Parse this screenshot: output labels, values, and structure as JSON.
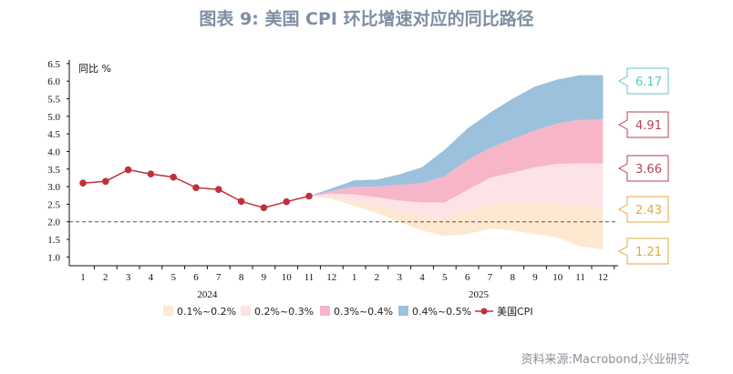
{
  "header": {
    "title": "图表 9:  美国 CPI 环比增速对应的同比路径"
  },
  "footer": {
    "source": "资料来源:Macrobond,兴业研究"
  },
  "chart_data": {
    "type": "area",
    "title": "图表 9:  美国 CPI 环比增速对应的同比路径",
    "ylabel": "同比 %",
    "xlabel": "",
    "ylim": [
      0.75,
      6.6
    ],
    "yticks": [
      "1.0",
      "1.5",
      "2.0",
      "2.5",
      "3.0",
      "3.5",
      "4.0",
      "4.5",
      "5.0",
      "5.5",
      "6.0",
      "6.5"
    ],
    "grid": false,
    "reference_line": 2.0,
    "categories": [
      "1",
      "2",
      "3",
      "4",
      "5",
      "6",
      "7",
      "8",
      "9",
      "10",
      "11",
      "12",
      "1",
      "2",
      "3",
      "4",
      "5",
      "6",
      "7",
      "8",
      "9",
      "10",
      "11",
      "12"
    ],
    "year_labels": [
      {
        "label": "2024",
        "at_index": 5.5
      },
      {
        "label": "2025",
        "at_index": 17.5
      }
    ],
    "legend_position": "bottom",
    "colors": {
      "band1": "#fde9d0",
      "band2": "#fde3e5",
      "band3": "#f7b6c8",
      "band4": "#9cc1dd",
      "cpi_line": "#c0303b",
      "ref_line": "#555555",
      "end_label_6": "#5cc6cf",
      "end_label_4": "#b5434f",
      "end_label_3": "#b5434f",
      "end_label_2": "#e0aa3e",
      "end_label_1": "#e0aa3e"
    },
    "series": [
      {
        "name": "美国CPI",
        "type": "line",
        "x": [
          0,
          1,
          2,
          3,
          4,
          5,
          6,
          7,
          8,
          9,
          10
        ],
        "values": [
          3.1,
          3.15,
          3.48,
          3.36,
          3.27,
          2.97,
          2.92,
          2.58,
          2.4,
          2.57,
          2.73
        ]
      },
      {
        "name": "0.1%~0.2%",
        "type": "band",
        "x": [
          10,
          11,
          12,
          13,
          14,
          15,
          16,
          17,
          18,
          19,
          20,
          21,
          22,
          23
        ],
        "lower": [
          2.73,
          2.65,
          2.45,
          2.25,
          2.0,
          1.75,
          1.6,
          1.65,
          1.8,
          1.75,
          1.65,
          1.55,
          1.3,
          1.21
        ],
        "upper": [
          2.73,
          2.7,
          2.55,
          2.45,
          2.3,
          2.15,
          2.1,
          2.3,
          2.5,
          2.5,
          2.5,
          2.5,
          2.45,
          2.43
        ]
      },
      {
        "name": "0.2%~0.3%",
        "type": "band",
        "x": [
          10,
          11,
          12,
          13,
          14,
          15,
          16,
          17,
          18,
          19,
          20,
          21,
          22,
          23
        ],
        "lower": [
          2.73,
          2.7,
          2.55,
          2.45,
          2.3,
          2.15,
          2.1,
          2.3,
          2.5,
          2.5,
          2.5,
          2.5,
          2.45,
          2.43
        ],
        "upper": [
          2.73,
          2.8,
          2.78,
          2.7,
          2.6,
          2.55,
          2.55,
          2.9,
          3.25,
          3.4,
          3.55,
          3.65,
          3.66,
          3.66
        ]
      },
      {
        "name": "0.3%~0.4%",
        "type": "band",
        "x": [
          10,
          11,
          12,
          13,
          14,
          15,
          16,
          17,
          18,
          19,
          20,
          21,
          22,
          23
        ],
        "lower": [
          2.73,
          2.8,
          2.78,
          2.7,
          2.6,
          2.55,
          2.55,
          2.9,
          3.25,
          3.4,
          3.55,
          3.65,
          3.66,
          3.66
        ],
        "upper": [
          2.73,
          2.88,
          3.0,
          3.0,
          3.05,
          3.1,
          3.3,
          3.75,
          4.1,
          4.35,
          4.6,
          4.8,
          4.9,
          4.91
        ]
      },
      {
        "name": "0.4%~0.5%",
        "type": "band",
        "x": [
          10,
          11,
          12,
          13,
          14,
          15,
          16,
          17,
          18,
          19,
          20,
          21,
          22,
          23
        ],
        "lower": [
          2.73,
          2.88,
          3.0,
          3.0,
          3.05,
          3.1,
          3.3,
          3.75,
          4.1,
          4.35,
          4.6,
          4.8,
          4.9,
          4.91
        ],
        "upper": [
          2.73,
          2.95,
          3.18,
          3.2,
          3.35,
          3.55,
          4.05,
          4.65,
          5.1,
          5.5,
          5.85,
          6.05,
          6.17,
          6.17
        ]
      }
    ],
    "end_labels": [
      "6.17",
      "4.91",
      "3.66",
      "2.43",
      "1.21"
    ],
    "legend": [
      "0.1%~0.2%",
      "0.2%~0.3%",
      "0.3%~0.4%",
      "0.4%~0.5%",
      "美国CPI"
    ]
  }
}
